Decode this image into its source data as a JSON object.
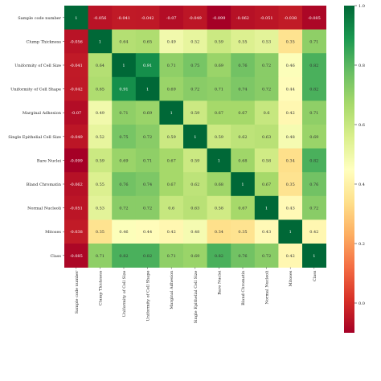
{
  "chart_data": {
    "type": "heatmap",
    "labels": [
      "Sample code number",
      "Clump Thickness",
      "Uniformity of Cell Size",
      "Uniformity of Cell Shape",
      "Marginal Adhesion",
      "Single Epithelial Cell Size",
      "Bare Nuclei",
      "Bland Chromatin",
      "Normal Nucleoli",
      "Mitoses",
      "Class"
    ],
    "matrix": [
      [
        1,
        -0.056,
        -0.041,
        -0.042,
        -0.07,
        -0.049,
        -0.099,
        -0.062,
        -0.051,
        -0.038,
        -0.085
      ],
      [
        -0.056,
        1,
        0.64,
        0.65,
        0.49,
        0.52,
        0.59,
        0.55,
        0.53,
        0.35,
        0.71
      ],
      [
        -0.041,
        0.64,
        1,
        0.91,
        0.71,
        0.75,
        0.69,
        0.76,
        0.72,
        0.46,
        0.82
      ],
      [
        -0.042,
        0.65,
        0.91,
        1,
        0.69,
        0.72,
        0.71,
        0.74,
        0.72,
        0.44,
        0.82
      ],
      [
        -0.07,
        0.49,
        0.71,
        0.69,
        1,
        0.59,
        0.67,
        0.67,
        0.6,
        0.42,
        0.71
      ],
      [
        -0.049,
        0.52,
        0.75,
        0.72,
        0.59,
        1,
        0.59,
        0.62,
        0.63,
        0.48,
        0.69
      ],
      [
        -0.099,
        0.59,
        0.69,
        0.71,
        0.67,
        0.59,
        1,
        0.68,
        0.58,
        0.34,
        0.82
      ],
      [
        -0.062,
        0.55,
        0.76,
        0.74,
        0.67,
        0.62,
        0.68,
        1,
        0.67,
        0.35,
        0.76
      ],
      [
        -0.051,
        0.53,
        0.72,
        0.72,
        0.6,
        0.63,
        0.58,
        0.67,
        1,
        0.43,
        0.72
      ],
      [
        -0.038,
        0.35,
        0.46,
        0.44,
        0.42,
        0.48,
        0.34,
        0.35,
        0.43,
        1,
        0.42
      ],
      [
        -0.085,
        0.71,
        0.82,
        0.82,
        0.71,
        0.69,
        0.82,
        0.76,
        0.72,
        0.42,
        1
      ]
    ],
    "display_labels": [
      [
        "1",
        "-0.056",
        "-0.041",
        "-0.042",
        "-0.07",
        "-0.049",
        "-0.099",
        "-0.062",
        "-0.051",
        "-0.038",
        "-0.085"
      ],
      [
        "-0.056",
        "1",
        "0.64",
        "0.65",
        "0.49",
        "0.52",
        "0.59",
        "0.55",
        "0.53",
        "0.35",
        "0.71"
      ],
      [
        "-0.041",
        "0.64",
        "1",
        "0.91",
        "0.71",
        "0.75",
        "0.69",
        "0.76",
        "0.72",
        "0.46",
        "0.82"
      ],
      [
        "-0.042",
        "0.65",
        "0.91",
        "1",
        "0.69",
        "0.72",
        "0.71",
        "0.74",
        "0.72",
        "0.44",
        "0.82"
      ],
      [
        "-0.07",
        "0.49",
        "0.71",
        "0.69",
        "1",
        "0.59",
        "0.67",
        "0.67",
        "0.6",
        "0.42",
        "0.71"
      ],
      [
        "-0.049",
        "0.52",
        "0.75",
        "0.72",
        "0.59",
        "1",
        "0.59",
        "0.62",
        "0.63",
        "0.48",
        "0.69"
      ],
      [
        "-0.099",
        "0.59",
        "0.69",
        "0.71",
        "0.67",
        "0.59",
        "1",
        "0.68",
        "0.58",
        "0.34",
        "0.82"
      ],
      [
        "-0.062",
        "0.55",
        "0.76",
        "0.74",
        "0.67",
        "0.62",
        "0.68",
        "1",
        "0.67",
        "0.35",
        "0.76"
      ],
      [
        "-0.051",
        "0.53",
        "0.72",
        "0.72",
        "0.6",
        "0.63",
        "0.58",
        "0.67",
        "1",
        "0.43",
        "0.72"
      ],
      [
        "-0.038",
        "0.35",
        "0.46",
        "0.44",
        "0.42",
        "0.48",
        "0.34",
        "0.35",
        "0.43",
        "1",
        "0.42"
      ],
      [
        "-0.085",
        "0.71",
        "0.82",
        "0.82",
        "0.71",
        "0.69",
        "0.82",
        "0.76",
        "0.72",
        "0.42",
        "1"
      ]
    ],
    "colormap": "RdYlGn",
    "colormap_stops": [
      "#a50026",
      "#d73027",
      "#f46d43",
      "#fdae61",
      "#fee08b",
      "#ffffbf",
      "#d9ef8b",
      "#a6d96a",
      "#66bd63",
      "#1a9850",
      "#006837"
    ],
    "value_range": [
      -0.1,
      1.0
    ],
    "colorbar_ticks": [
      0.0,
      0.2,
      0.4,
      0.6,
      0.8,
      1.0
    ],
    "colorbar_tick_labels": [
      "0.0",
      "0.2",
      "0.4",
      "0.6",
      "0.8",
      "1.0"
    ],
    "colorbar_position": "right",
    "grid": false,
    "title": "",
    "xlabel": "",
    "ylabel": ""
  }
}
